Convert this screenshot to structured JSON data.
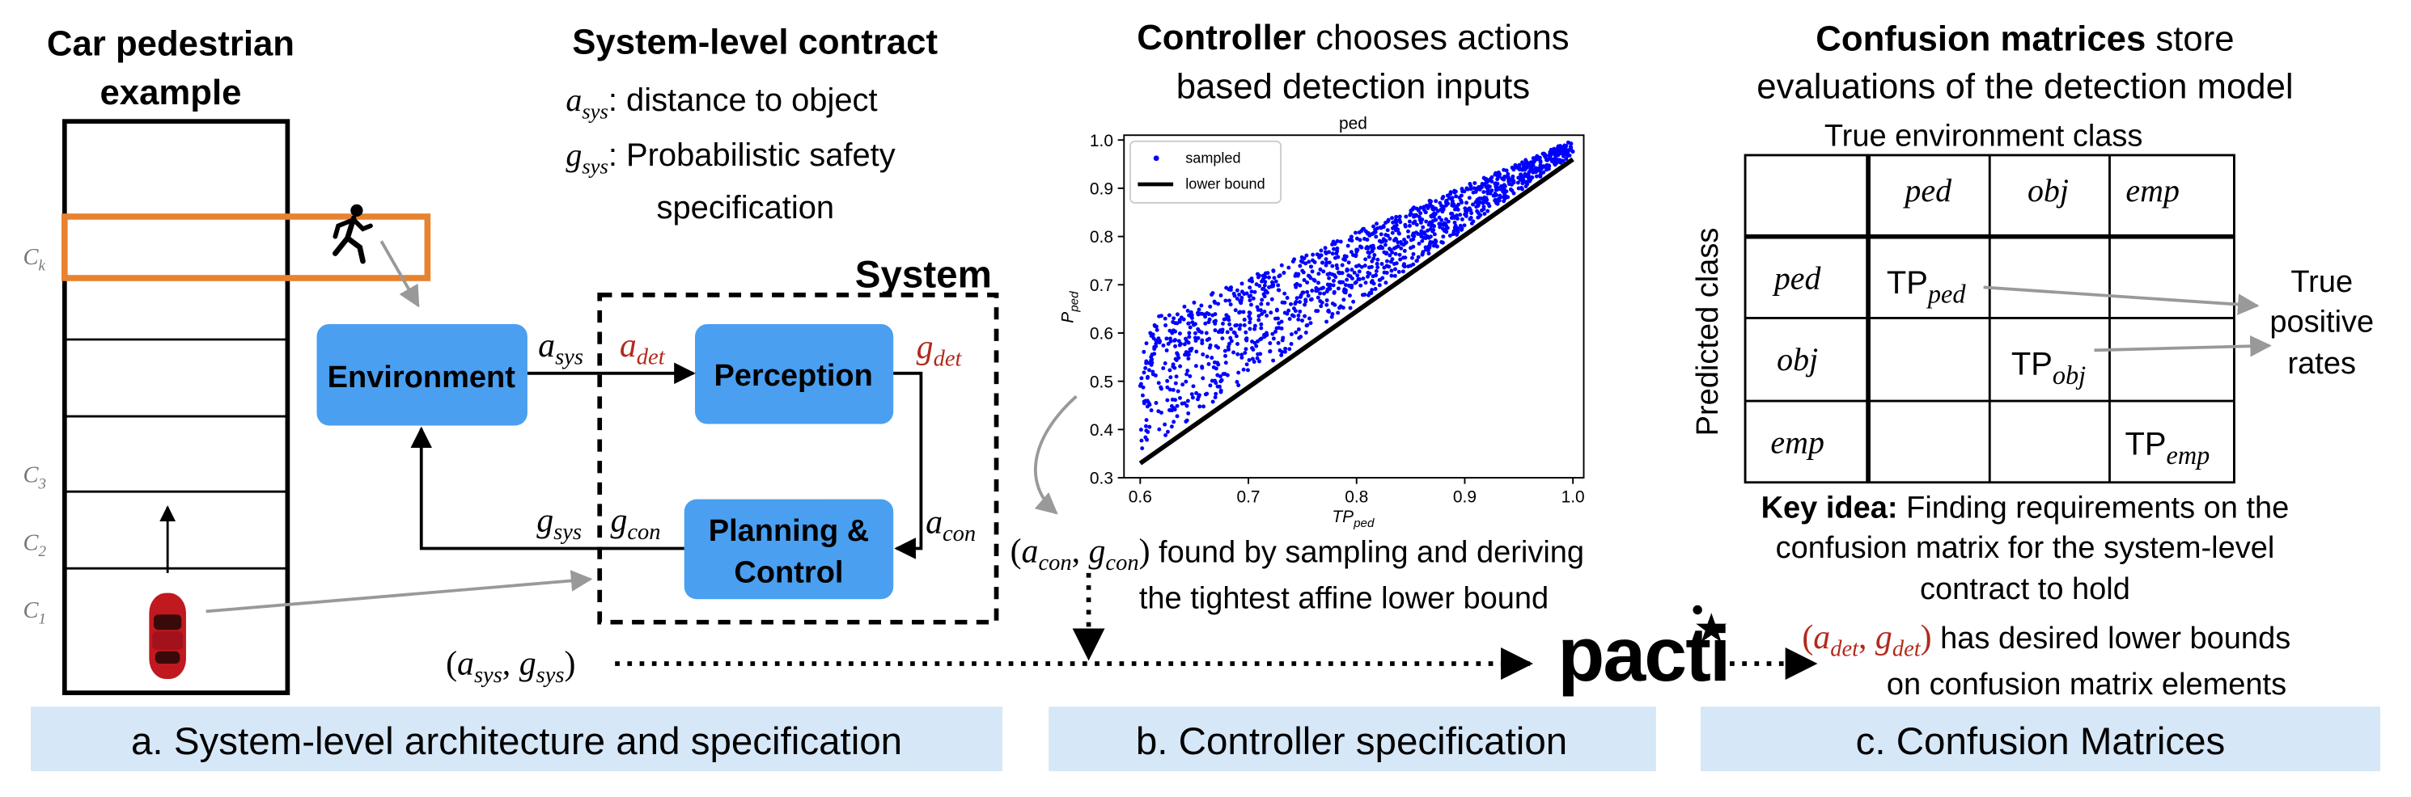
{
  "colors": {
    "block": "#4a9ff0",
    "orange": "#e8822e",
    "red_label": "#b22a1c",
    "footer_bg": "#d6e7f7",
    "scatter": "#0000ff",
    "arrow_gray": "#999999"
  },
  "panel_a": {
    "title_line1": "Car pedestrian",
    "title_line2": "example",
    "lane_labels": [
      {
        "main": "C",
        "sub": "k"
      },
      {
        "main": "C",
        "sub": "3"
      },
      {
        "main": "C",
        "sub": "2"
      },
      {
        "main": "C",
        "sub": "1"
      }
    ],
    "icons": {
      "pedestrian": "running-person-icon",
      "car": "red-car-icon"
    },
    "contract_title": "System-level contract",
    "a_sys_symbol": {
      "main": "a",
      "sub": "sys"
    },
    "a_sys_desc": ": distance to object",
    "g_sys_symbol": {
      "main": "g",
      "sub": "sys"
    },
    "g_sys_desc_line1": ": Probabilistic safety",
    "g_sys_desc_line2": "specification",
    "system_label": "System",
    "environment": "Environment",
    "perception": "Perception",
    "planning_line1": "Planning &",
    "planning_line2": "Control",
    "sym_a_sys": {
      "main": "a",
      "sub": "sys"
    },
    "sym_a_det": {
      "main": "a",
      "sub": "det"
    },
    "sym_g_det": {
      "main": "g",
      "sub": "det"
    },
    "sym_a_con": {
      "main": "a",
      "sub": "con"
    },
    "sym_g_sys": {
      "main": "g",
      "sub": "sys"
    },
    "sym_g_con": {
      "main": "g",
      "sub": "con"
    },
    "bottom_pair": {
      "open": "(",
      "a": "a",
      "a_sub": "sys",
      "sep": ", ",
      "g": "g",
      "g_sub": "sys",
      "close": ")"
    }
  },
  "panel_b": {
    "title_bold": "Controller",
    "title_rest_line1": " chooses actions",
    "title_line2": "based detection inputs",
    "pair": {
      "open": "(",
      "a": "a",
      "a_sub": "con",
      "sep": ", ",
      "g": "g",
      "g_sub": "con",
      "close": ")"
    },
    "desc_line1": " found by sampling and deriving",
    "desc_line2": "the tightest affine lower bound"
  },
  "chart_data": {
    "type": "scatter",
    "title": "ped",
    "xlabel": {
      "main": "TP",
      "sub": "ped"
    },
    "ylabel": {
      "main": "P",
      "sub": "ped"
    },
    "xlim": [
      0.585,
      1.01
    ],
    "ylim": [
      0.3,
      1.01
    ],
    "x_ticks": [
      "0.6",
      "0.7",
      "0.8",
      "0.9",
      "1.0"
    ],
    "y_ticks": [
      "0.3",
      "0.4",
      "0.5",
      "0.6",
      "0.7",
      "0.8",
      "0.9",
      "1.0"
    ],
    "legend_position": "top-left",
    "grid": false,
    "series": [
      {
        "name": "sampled",
        "kind": "points",
        "sample_x_range": [
          0.6,
          1.0
        ],
        "upper_edge": [
          [
            0.6,
            0.62
          ],
          [
            1.0,
            1.0
          ]
        ],
        "lower_edge": [
          [
            0.6,
            0.35
          ],
          [
            1.0,
            0.97
          ]
        ]
      },
      {
        "name": "lower bound",
        "kind": "line",
        "points": [
          [
            0.6,
            0.33
          ],
          [
            1.0,
            0.96
          ]
        ]
      }
    ]
  },
  "pacti": {
    "logo_text": "pacti",
    "logo_icon": "asterisk-sparkle-icon"
  },
  "panel_c": {
    "title_bold": "Confusion matrices",
    "title_rest_line1": " store",
    "title_line2": "evaluations of the detection model",
    "true_env_label": "True environment class",
    "predicted_label": "Predicted class",
    "col_headers": [
      "ped",
      "obj",
      "emp"
    ],
    "row_headers": [
      "ped",
      "obj",
      "emp"
    ],
    "diagonal": [
      {
        "main": "TP",
        "sub": "ped"
      },
      {
        "main": "TP",
        "sub": "obj"
      },
      {
        "main": "TP",
        "sub": "emp"
      }
    ],
    "tpr_line1": "True",
    "tpr_line2": "positive",
    "tpr_line3": "rates",
    "key_bold": "Key idea:",
    "key_rest_line1": " Finding requirements on the",
    "key_line2": "confusion matrix for the system-level",
    "key_line3": "contract to hold",
    "det_pair": {
      "open": "(",
      "a": "a",
      "a_sub": "det",
      "sep": ", ",
      "g": "g",
      "g_sub": "det",
      "close": ")"
    },
    "det_desc_line1": " has desired lower bounds",
    "det_desc_line2": "on confusion matrix elements"
  },
  "footer": {
    "a": "a. System-level architecture and specification",
    "b": "b. Controller specification",
    "c": "c. Confusion Matrices"
  }
}
